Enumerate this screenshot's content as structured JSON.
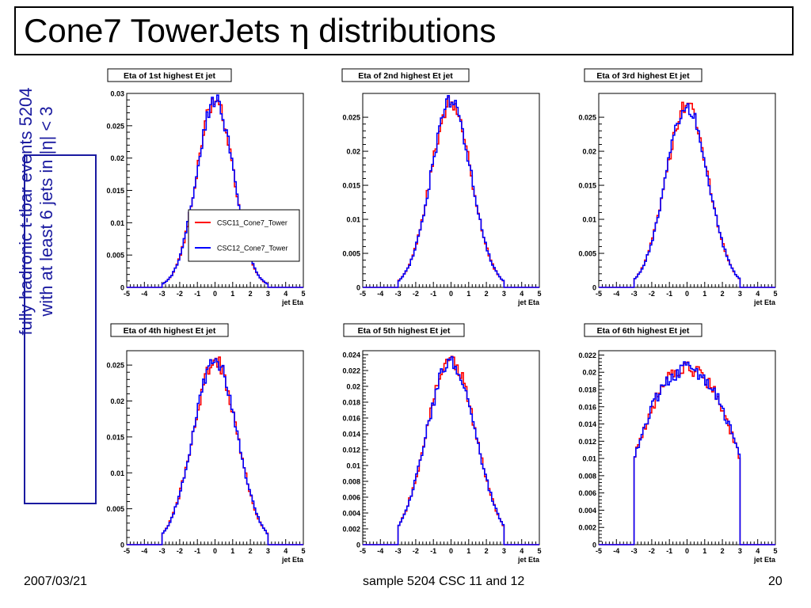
{
  "slide": {
    "title_main": "Cone7 TowerJets ",
    "title_eta": "η",
    "title_rest": " distributions",
    "side_line1": "fully hadronic t-tbar events 5204",
    "side_line2": "with at least 6 jets in |η| < 3",
    "footer_date": "2007/03/21",
    "footer_sample": "sample 5204 CSC 11 and 12",
    "footer_page": "20"
  },
  "legend": {
    "entries": [
      {
        "label": "CSC11_Cone7_Tower",
        "color": "#ff0000"
      },
      {
        "label": "CSC12_Cone7_Tower",
        "color": "#0000ff"
      }
    ]
  },
  "colors": {
    "csc11": "#ff0000",
    "csc12": "#0000ff",
    "box_blue": "#1a1aa0"
  },
  "chart_data": [
    {
      "type": "line",
      "title": "Eta of 1st highest Et jet",
      "xlabel": "jet Eta",
      "xlim": [
        -5,
        5
      ],
      "ylim": [
        0,
        0.03
      ],
      "xticks": [
        -5,
        -4,
        -3,
        -2,
        -1,
        0,
        1,
        2,
        3,
        4,
        5
      ],
      "yticks": [
        0,
        0.005,
        0.01,
        0.015,
        0.02,
        0.025,
        0.03
      ],
      "ytick_labels": [
        "0",
        "0.005",
        "0.01",
        "0.015",
        "0.02",
        "0.025",
        "0.03"
      ],
      "shape": {
        "peak": 0.029,
        "sigma": 1.05,
        "edge": 3
      },
      "series": [
        {
          "name": "CSC11_Cone7_Tower"
        },
        {
          "name": "CSC12_Cone7_Tower"
        }
      ],
      "legend": true
    },
    {
      "type": "line",
      "title": "Eta of 2nd highest Et jet",
      "xlabel": "jet Eta",
      "xlim": [
        -5,
        5
      ],
      "ylim": [
        0,
        0.0285
      ],
      "xticks": [
        -5,
        -4,
        -3,
        -2,
        -1,
        0,
        1,
        2,
        3,
        4,
        5
      ],
      "yticks": [
        0,
        0.005,
        0.01,
        0.015,
        0.02,
        0.025
      ],
      "ytick_labels": [
        "0",
        "0.005",
        "0.01",
        "0.015",
        "0.02",
        "0.025"
      ],
      "shape": {
        "peak": 0.0272,
        "sigma": 1.15,
        "edge": 3
      },
      "series": [
        {
          "name": "CSC11_Cone7_Tower"
        },
        {
          "name": "CSC12_Cone7_Tower"
        }
      ],
      "legend": false
    },
    {
      "type": "line",
      "title": "Eta of 3rd highest Et jet",
      "xlabel": "jet Eta",
      "xlim": [
        -5,
        5
      ],
      "ylim": [
        0,
        0.0285
      ],
      "xticks": [
        -5,
        -4,
        -3,
        -2,
        -1,
        0,
        1,
        2,
        3,
        4,
        5
      ],
      "yticks": [
        0,
        0.005,
        0.01,
        0.015,
        0.02,
        0.025
      ],
      "ytick_labels": [
        "0",
        "0.005",
        "0.01",
        "0.015",
        "0.02",
        "0.025"
      ],
      "shape": {
        "peak": 0.0268,
        "sigma": 1.2,
        "edge": 3
      },
      "series": [
        {
          "name": "CSC11_Cone7_Tower"
        },
        {
          "name": "CSC12_Cone7_Tower"
        }
      ],
      "legend": false
    },
    {
      "type": "line",
      "title": "Eta of 4th highest Et jet",
      "xlabel": "jet Eta",
      "xlim": [
        -5,
        5
      ],
      "ylim": [
        0,
        0.027
      ],
      "xticks": [
        -5,
        -4,
        -3,
        -2,
        -1,
        0,
        1,
        2,
        3,
        4,
        5
      ],
      "yticks": [
        0,
        0.005,
        0.01,
        0.015,
        0.02,
        0.025
      ],
      "ytick_labels": [
        "0",
        "0.005",
        "0.01",
        "0.015",
        "0.02",
        "0.025"
      ],
      "shape": {
        "peak": 0.0255,
        "sigma": 1.25,
        "edge": 3
      },
      "series": [
        {
          "name": "CSC11_Cone7_Tower"
        },
        {
          "name": "CSC12_Cone7_Tower"
        }
      ],
      "legend": false
    },
    {
      "type": "line",
      "title": "Eta of 5th highest Et jet",
      "xlabel": "jet Eta",
      "xlim": [
        -5,
        5
      ],
      "ylim": [
        0,
        0.0245
      ],
      "xticks": [
        -5,
        -4,
        -3,
        -2,
        -1,
        0,
        1,
        2,
        3,
        4,
        5
      ],
      "yticks": [
        0,
        0.002,
        0.004,
        0.006,
        0.008,
        0.01,
        0.012,
        0.014,
        0.016,
        0.018,
        0.02,
        0.022,
        0.024
      ],
      "ytick_labels": [
        "0",
        "0.002",
        "0.004",
        "0.006",
        "0.008",
        "0.01",
        "0.012",
        "0.014",
        "0.016",
        "0.018",
        "0.02",
        "0.022",
        "0.024"
      ],
      "shape": {
        "peak": 0.0232,
        "sigma": 1.4,
        "edge": 3
      },
      "series": [
        {
          "name": "CSC11_Cone7_Tower"
        },
        {
          "name": "CSC12_Cone7_Tower"
        }
      ],
      "legend": false
    },
    {
      "type": "line",
      "title": "Eta of 6th highest Et jet",
      "xlabel": "jet Eta",
      "xlim": [
        -5,
        5
      ],
      "ylim": [
        0,
        0.0225
      ],
      "xticks": [
        -5,
        -4,
        -3,
        -2,
        -1,
        0,
        1,
        2,
        3,
        4,
        5
      ],
      "yticks": [
        0,
        0.002,
        0.004,
        0.006,
        0.008,
        0.01,
        0.012,
        0.014,
        0.016,
        0.018,
        0.02,
        0.022
      ],
      "ytick_labels": [
        "0",
        "0.002",
        "0.004",
        "0.006",
        "0.008",
        "0.01",
        "0.012",
        "0.014",
        "0.016",
        "0.018",
        "0.02",
        "0.022"
      ],
      "shape": {
        "peak": 0.0205,
        "sigma": 1.9,
        "edge": 3
      },
      "series": [
        {
          "name": "CSC11_Cone7_Tower"
        },
        {
          "name": "CSC12_Cone7_Tower"
        }
      ],
      "legend": false
    }
  ]
}
